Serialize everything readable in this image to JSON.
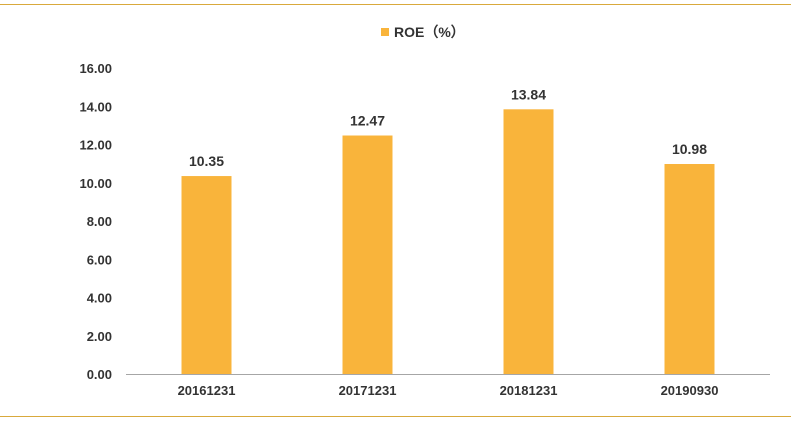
{
  "chart_data": {
    "type": "bar",
    "categories": [
      "20161231",
      "20171231",
      "20181231",
      "20190930"
    ],
    "series": [
      {
        "name": "ROE（%）",
        "values": [
          10.35,
          12.47,
          13.84,
          10.98
        ]
      }
    ],
    "data_labels": [
      "10.35",
      "12.47",
      "13.84",
      "10.98"
    ],
    "y_ticks": [
      "0.00",
      "2.00",
      "4.00",
      "6.00",
      "8.00",
      "10.00",
      "12.00",
      "14.00",
      "16.00"
    ],
    "ylim": [
      0,
      16
    ],
    "title": "",
    "xlabel": "",
    "ylabel": "",
    "grid": false,
    "legend_position": "top-center",
    "colors": {
      "bar": "#f9b43b",
      "axis": "#a6a6a6",
      "rule": "#d9a93c"
    }
  }
}
